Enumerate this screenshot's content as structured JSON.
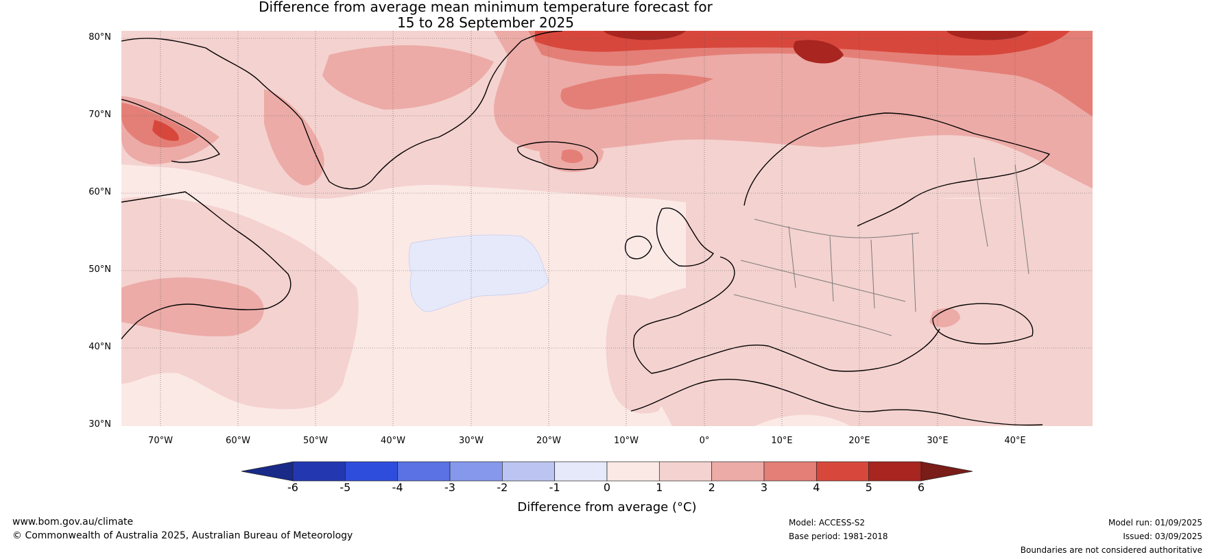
{
  "title": {
    "line1": "Difference from average mean minimum temperature forecast for",
    "line2": "15 to 28 September 2025"
  },
  "map": {
    "lat_labels": [
      "80°N",
      "70°N",
      "60°N",
      "50°N",
      "40°N",
      "30°N"
    ],
    "lon_labels": [
      "70°W",
      "60°W",
      "50°W",
      "40°W",
      "30°W",
      "20°W",
      "10°W",
      "0°",
      "10°E",
      "20°E",
      "30°E",
      "40°E"
    ]
  },
  "colorbar": {
    "label": "Difference from average (°C)",
    "ticks": [
      "-6",
      "-5",
      "-4",
      "-3",
      "-2",
      "-1",
      "0",
      "1",
      "2",
      "3",
      "4",
      "5",
      "6"
    ],
    "colors": [
      "#1a2a88",
      "#2338b0",
      "#2f4ddc",
      "#5a72e4",
      "#8698ec",
      "#bcc5f2",
      "#e6e9fa",
      "#fbe9e6",
      "#f4d2cf",
      "#ecaba7",
      "#e47f77",
      "#d8473c",
      "#a82520",
      "#7a1c18"
    ]
  },
  "footer": {
    "url": "www.bom.gov.au/climate",
    "copyright": "© Commonwealth of Australia 2025, Australian Bureau of Meteorology",
    "model": "Model: ACCESS-S2",
    "base_period": "Base period: 1981-2018",
    "model_run": "Model run: 01/09/2025",
    "issued": "Issued: 03/09/2025",
    "disclaimer": "Boundaries are not considered authoritative"
  }
}
